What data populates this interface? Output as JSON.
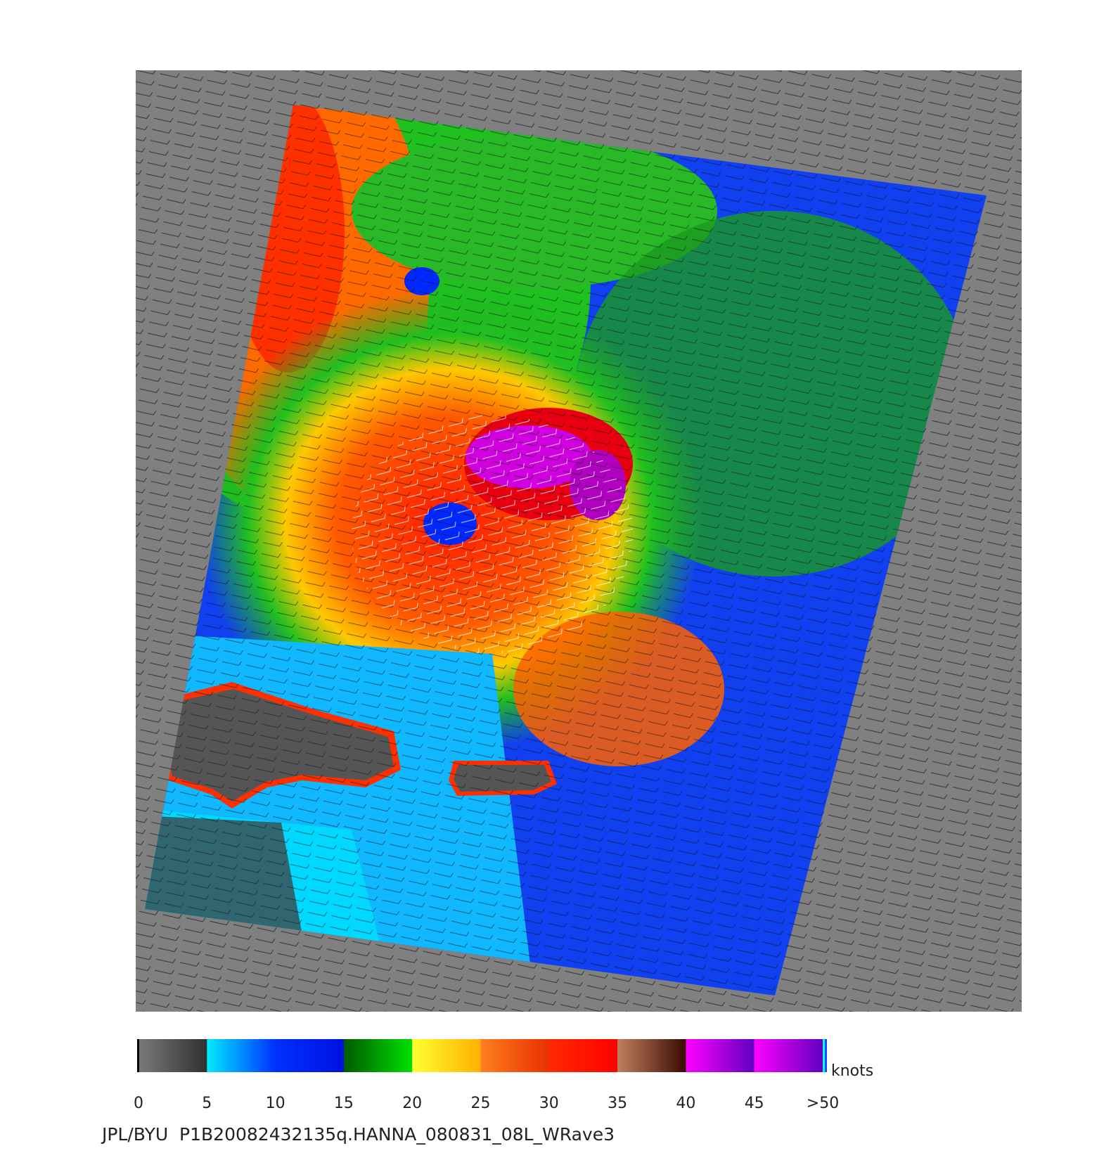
{
  "colorbar": {
    "range": [
      0,
      50
    ],
    "ticks": [
      0,
      5,
      10,
      15,
      20,
      25,
      30,
      35,
      40,
      45,
      {
        "value": 50,
        "label": ">50"
      }
    ],
    "unit": "knots"
  },
  "caption": "JPL/BYU  P1B20082432135q.HANNA_080831_08L_WRave3"
}
